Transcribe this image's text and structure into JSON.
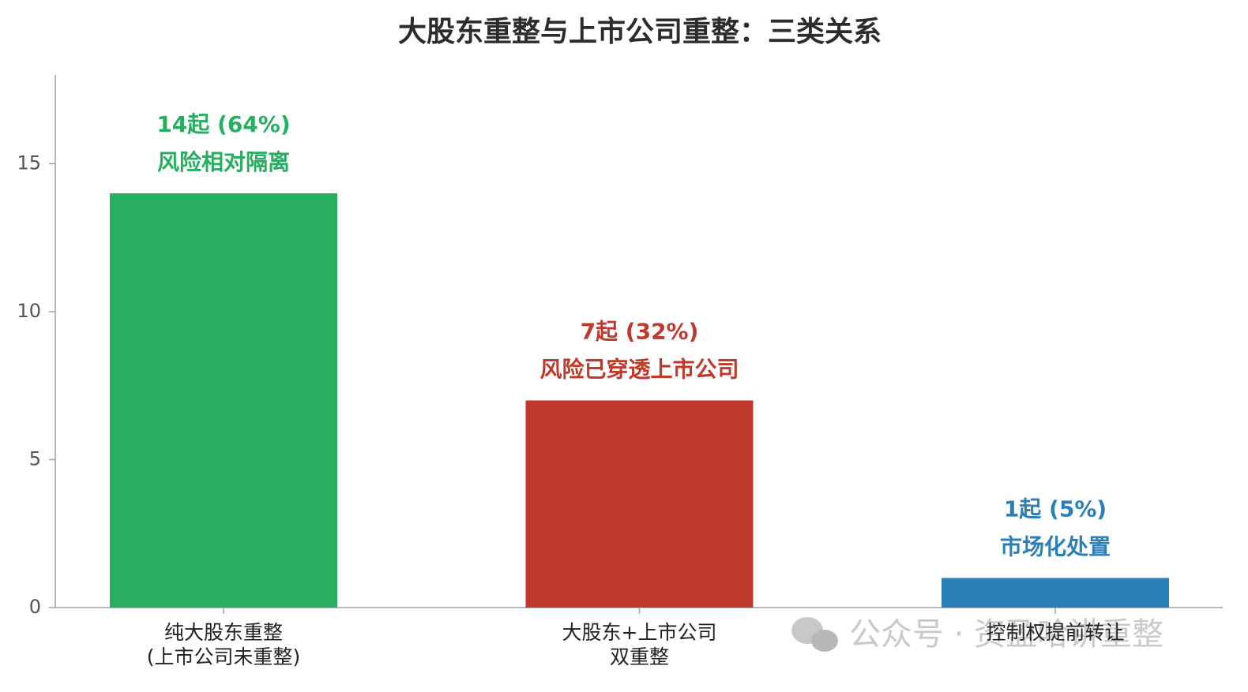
{
  "chart_data": {
    "type": "bar",
    "title": "大股东重整与上市公司重整：三类关系",
    "categories": [
      "纯大股东重整\n(上市公司未重整)",
      "大股东+上市公司\n双重整",
      "控制权提前转让"
    ],
    "values": [
      14,
      7,
      1
    ],
    "value_labels": [
      "14起 (64%)",
      "7起 (32%)",
      "1起 (5%)"
    ],
    "annotations": [
      "风险相对隔离",
      "风险已穿透上市公司",
      "市场化处置"
    ],
    "colors": [
      "#27ae60",
      "#c0392b",
      "#2980b9"
    ],
    "ylim": [
      0,
      18
    ],
    "yticks": [
      0,
      5,
      10,
      15
    ],
    "watermark": "公众号 · 资盈哈讲重整"
  }
}
